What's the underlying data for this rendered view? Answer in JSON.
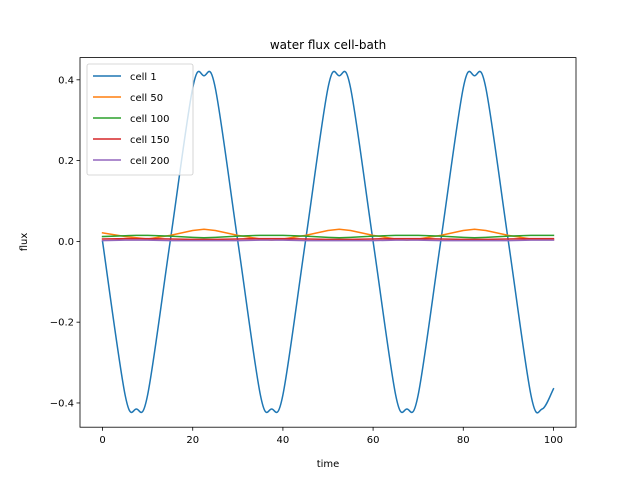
{
  "chart_data": {
    "type": "line",
    "title": "water flux cell-bath",
    "xlabel": "time",
    "ylabel": "flux",
    "xlim": [
      -5,
      105
    ],
    "ylim": [
      -0.46,
      0.455
    ],
    "xticks": [
      0,
      20,
      40,
      60,
      80,
      100
    ],
    "yticks": [
      -0.4,
      -0.2,
      0.0,
      0.2,
      0.4
    ],
    "ytick_labels": [
      "−0.4",
      "−0.2",
      "0.0",
      "0.2",
      "0.4"
    ],
    "grid": false,
    "legend_position": "top-left",
    "x": [
      0,
      5,
      7.5,
      10,
      15,
      20,
      22.5,
      25,
      30,
      35,
      37.5,
      40,
      45,
      50,
      52.5,
      55,
      60,
      65,
      67.5,
      70,
      75,
      80,
      82.5,
      85,
      90,
      95,
      97.5,
      100
    ],
    "series": [
      {
        "name": "cell 1",
        "color": "#1f77b4",
        "values": [
          0.0,
          -0.38,
          -0.415,
          -0.38,
          0.0,
          0.38,
          0.41,
          0.38,
          0.0,
          -0.38,
          -0.415,
          -0.38,
          0.0,
          0.38,
          0.41,
          0.38,
          0.0,
          -0.38,
          -0.415,
          -0.38,
          0.0,
          0.38,
          0.41,
          0.38,
          0.0,
          -0.38,
          -0.415,
          -0.365
        ]
      },
      {
        "name": "cell 50",
        "color": "#ff7f0e",
        "values": [
          0.021,
          0.012,
          0.009,
          0.006,
          0.015,
          0.027,
          0.03,
          0.027,
          0.015,
          0.006,
          0.003,
          0.006,
          0.015,
          0.027,
          0.03,
          0.027,
          0.015,
          0.006,
          0.003,
          0.006,
          0.015,
          0.027,
          0.03,
          0.027,
          0.015,
          0.006,
          0.004,
          0.004
        ]
      },
      {
        "name": "cell 100",
        "color": "#2ca02c",
        "values": [
          0.012,
          0.014,
          0.015,
          0.015,
          0.013,
          0.01,
          0.009,
          0.01,
          0.013,
          0.015,
          0.015,
          0.015,
          0.013,
          0.01,
          0.009,
          0.01,
          0.013,
          0.015,
          0.015,
          0.015,
          0.013,
          0.01,
          0.009,
          0.01,
          0.013,
          0.015,
          0.015,
          0.015
        ]
      },
      {
        "name": "cell 150",
        "color": "#d62728",
        "values": [
          0.006,
          0.007,
          0.007,
          0.007,
          0.006,
          0.005,
          0.005,
          0.005,
          0.006,
          0.007,
          0.007,
          0.007,
          0.006,
          0.005,
          0.005,
          0.005,
          0.006,
          0.007,
          0.007,
          0.007,
          0.006,
          0.005,
          0.005,
          0.005,
          0.006,
          0.007,
          0.007,
          0.007
        ]
      },
      {
        "name": "cell 200",
        "color": "#9467bd",
        "values": [
          0.002,
          0.003,
          0.003,
          0.003,
          0.002,
          0.002,
          0.002,
          0.002,
          0.002,
          0.003,
          0.003,
          0.003,
          0.002,
          0.002,
          0.002,
          0.002,
          0.002,
          0.003,
          0.003,
          0.003,
          0.002,
          0.002,
          0.002,
          0.002,
          0.002,
          0.003,
          0.003,
          0.003
        ]
      }
    ]
  }
}
